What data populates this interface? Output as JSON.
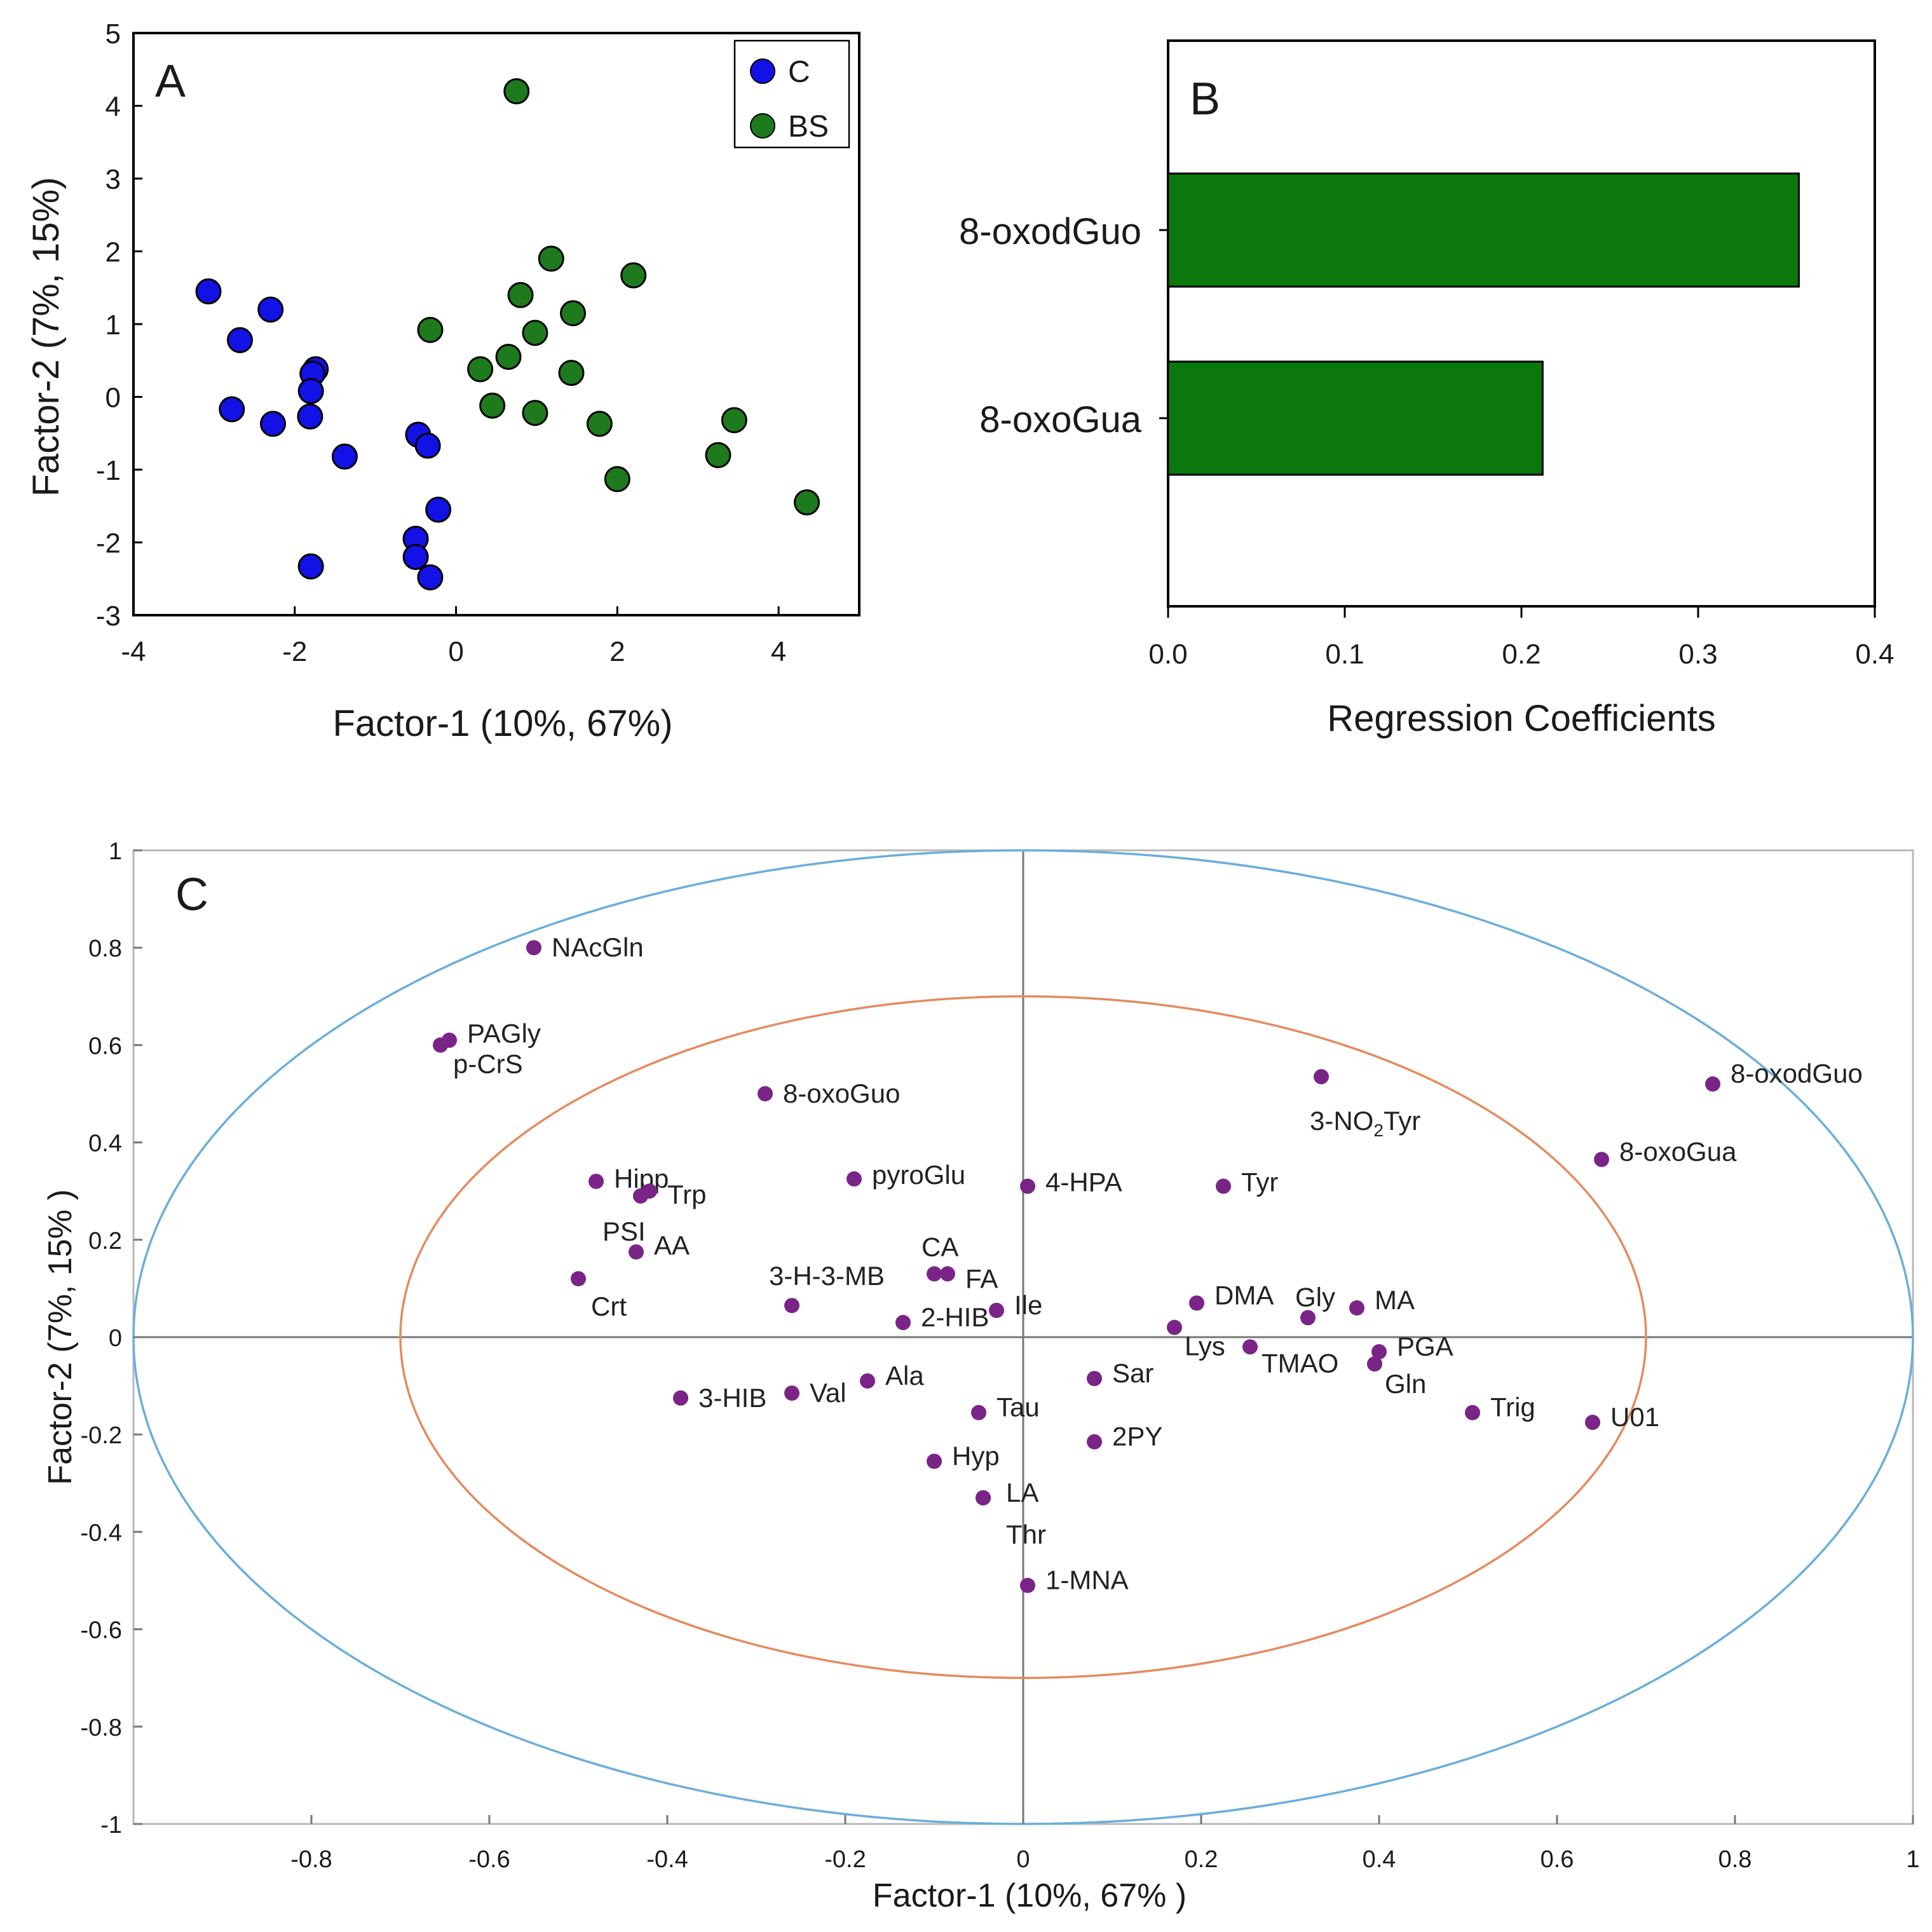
{
  "colors": {
    "control": "#1212e6",
    "bs": "#1d7a1d",
    "bar_fill": "#0b780b",
    "loading": "#7a2487",
    "outer_circle": "#6aaedb",
    "inner_circle": "#e58a5f"
  },
  "chart_data": [
    {
      "id": "A",
      "type": "scatter",
      "panel_label": "A",
      "xlabel": "Factor-1 (10%, 67%)",
      "ylabel": "Factor-2 (7%, 15%)",
      "xlim": [
        -4,
        5
      ],
      "ylim": [
        -3,
        5
      ],
      "xticks": [
        -4,
        -2,
        0,
        2,
        4
      ],
      "yticks": [
        -3,
        -2,
        -1,
        0,
        1,
        2,
        3,
        4,
        5
      ],
      "xtick_labels": [
        "-4",
        "-2",
        "0",
        "2",
        "4"
      ],
      "ytick_labels": [
        "-3",
        "-2",
        "-1",
        "0",
        "1",
        "2",
        "3",
        "4",
        "5"
      ],
      "legend_position": "top-right",
      "series": [
        {
          "name": "C",
          "points": [
            [
              -3.07,
              1.45
            ],
            [
              -2.3,
              1.2
            ],
            [
              -2.68,
              0.78
            ],
            [
              -1.74,
              0.38
            ],
            [
              -1.78,
              0.32
            ],
            [
              -1.8,
              0.08
            ],
            [
              -2.78,
              -0.17
            ],
            [
              -2.27,
              -0.37
            ],
            [
              -1.81,
              -0.27
            ],
            [
              -1.38,
              -0.82
            ],
            [
              -0.47,
              -0.52
            ],
            [
              -0.35,
              -0.67
            ],
            [
              -0.22,
              -1.55
            ],
            [
              -0.5,
              -1.95
            ],
            [
              -0.5,
              -2.2
            ],
            [
              -0.32,
              -2.48
            ],
            [
              -1.8,
              -2.33
            ]
          ]
        },
        {
          "name": "BS",
          "points": [
            [
              0.75,
              4.2
            ],
            [
              1.18,
              1.9
            ],
            [
              2.2,
              1.67
            ],
            [
              0.8,
              1.4
            ],
            [
              1.45,
              1.15
            ],
            [
              -0.32,
              0.92
            ],
            [
              0.98,
              0.88
            ],
            [
              0.65,
              0.55
            ],
            [
              0.3,
              0.38
            ],
            [
              1.43,
              0.33
            ],
            [
              0.45,
              -0.12
            ],
            [
              0.98,
              -0.22
            ],
            [
              1.78,
              -0.37
            ],
            [
              3.45,
              -0.32
            ],
            [
              3.25,
              -0.8
            ],
            [
              2.0,
              -1.13
            ],
            [
              4.35,
              -1.45
            ]
          ]
        }
      ]
    },
    {
      "id": "B",
      "type": "bar",
      "panel_label": "B",
      "orientation": "horizontal",
      "categories": [
        "8-oxodGuo",
        "8-oxoGua"
      ],
      "values": [
        0.357,
        0.212
      ],
      "xlabel": "Regression Coefficients",
      "xlim": [
        0.0,
        0.4
      ],
      "xticks": [
        0.0,
        0.1,
        0.2,
        0.3,
        0.4
      ],
      "xtick_labels": [
        "0.0",
        "0.1",
        "0.2",
        "0.3",
        "0.4"
      ]
    },
    {
      "id": "C",
      "type": "scatter",
      "panel_label": "C",
      "xlabel": "Factor-1 (10%, 67% )",
      "ylabel": "Factor-2 (7%, 15% )",
      "xlim": [
        -1,
        1
      ],
      "ylim": [
        -1,
        1
      ],
      "xticks": [
        -0.8,
        -0.6,
        -0.4,
        -0.2,
        0,
        0.2,
        0.4,
        0.6,
        0.8,
        1
      ],
      "xtick_labels": [
        "-0.8",
        "-0.6",
        "-0.4",
        "-0.2",
        "0",
        "0.2",
        "0.4",
        "0.6",
        "0.8",
        "1"
      ],
      "yticks": [
        -1,
        -0.8,
        -0.6,
        -0.4,
        -0.2,
        0,
        0.2,
        0.4,
        0.6,
        0.8,
        1
      ],
      "ytick_labels": [
        "-1",
        "-0.8",
        "-0.6",
        "-0.4",
        "-0.2",
        "0",
        "0.2",
        "0.4",
        "0.6",
        "0.8",
        "1"
      ],
      "circle_radii": [
        1.0,
        0.7
      ],
      "points": [
        {
          "x": -0.55,
          "y": 0.8,
          "label": "NAcGln"
        },
        {
          "x": -0.645,
          "y": 0.61,
          "label": "PAGly"
        },
        {
          "x": -0.655,
          "y": 0.6,
          "label": "p-CrS"
        },
        {
          "x": -0.29,
          "y": 0.5,
          "label": "8-oxoGuo"
        },
        {
          "x": -0.48,
          "y": 0.32,
          "label": "Hipp"
        },
        {
          "x": -0.42,
          "y": 0.3,
          "label": "Trp"
        },
        {
          "x": -0.43,
          "y": 0.29,
          "label": "PSI"
        },
        {
          "x": -0.435,
          "y": 0.175,
          "label": "AA"
        },
        {
          "x": -0.5,
          "y": 0.12,
          "label": "Crt"
        },
        {
          "x": -0.19,
          "y": 0.325,
          "label": "pyroGlu"
        },
        {
          "x": 0.005,
          "y": 0.31,
          "label": "4-HPA"
        },
        {
          "x": -0.1,
          "y": 0.13,
          "label": "CA"
        },
        {
          "x": -0.085,
          "y": 0.13,
          "label": "FA"
        },
        {
          "x": -0.26,
          "y": 0.065,
          "label": "3-H-3-MB"
        },
        {
          "x": -0.135,
          "y": 0.03,
          "label": "2-HIB"
        },
        {
          "x": -0.03,
          "y": 0.055,
          "label": "Ile"
        },
        {
          "x": 0.225,
          "y": 0.31,
          "label": "Tyr"
        },
        {
          "x": 0.335,
          "y": 0.535,
          "label": "3-NO2Tyr"
        },
        {
          "x": 0.775,
          "y": 0.52,
          "label": "8-oxodGuo"
        },
        {
          "x": 0.65,
          "y": 0.365,
          "label": "8-oxoGua"
        },
        {
          "x": 0.195,
          "y": 0.07,
          "label": "DMA"
        },
        {
          "x": 0.32,
          "y": 0.04,
          "label": "Gly"
        },
        {
          "x": 0.375,
          "y": 0.06,
          "label": "MA"
        },
        {
          "x": 0.17,
          "y": 0.02,
          "label": "Lys"
        },
        {
          "x": 0.255,
          "y": -0.02,
          "label": "TMAO"
        },
        {
          "x": 0.4,
          "y": -0.03,
          "label": "PGA"
        },
        {
          "x": 0.395,
          "y": -0.055,
          "label": "Gln"
        },
        {
          "x": -0.385,
          "y": -0.125,
          "label": "3-HIB"
        },
        {
          "x": -0.26,
          "y": -0.115,
          "label": "Val"
        },
        {
          "x": -0.175,
          "y": -0.09,
          "label": "Ala"
        },
        {
          "x": 0.08,
          "y": -0.085,
          "label": "Sar"
        },
        {
          "x": -0.05,
          "y": -0.155,
          "label": "Tau"
        },
        {
          "x": 0.08,
          "y": -0.215,
          "label": "2PY"
        },
        {
          "x": -0.1,
          "y": -0.255,
          "label": "Hyp"
        },
        {
          "x": -0.045,
          "y": -0.33,
          "label": "LA"
        },
        {
          "x": -0.045,
          "y": -0.33,
          "label": "Thr"
        },
        {
          "x": 0.005,
          "y": -0.51,
          "label": "1-MNA"
        },
        {
          "x": 0.505,
          "y": -0.155,
          "label": "Trig"
        },
        {
          "x": 0.64,
          "y": -0.175,
          "label": "U01"
        }
      ]
    }
  ]
}
